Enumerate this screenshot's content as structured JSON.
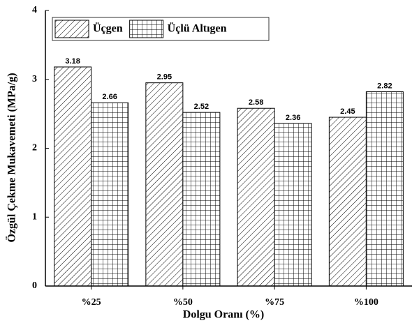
{
  "chart_data": {
    "type": "bar",
    "x_label": "Dolgu Oranı (%)",
    "y_label": "Özgül Çekme Mukavemeti (MPa/g)",
    "categories": [
      "%25",
      "%50",
      "%75",
      "%100"
    ],
    "series": [
      {
        "name": "Üçgen",
        "color": "#000000",
        "hatch": "diagonal",
        "values": [
          3.18,
          2.95,
          2.58,
          2.45
        ]
      },
      {
        "name": "Üçlü Altıgen",
        "color": "#000000",
        "hatch": "grid",
        "values": [
          2.66,
          2.52,
          2.36,
          2.82
        ]
      }
    ],
    "ylim": [
      0,
      4
    ],
    "yticks": [
      0,
      1,
      2,
      3,
      4
    ],
    "legend": "upper left"
  }
}
